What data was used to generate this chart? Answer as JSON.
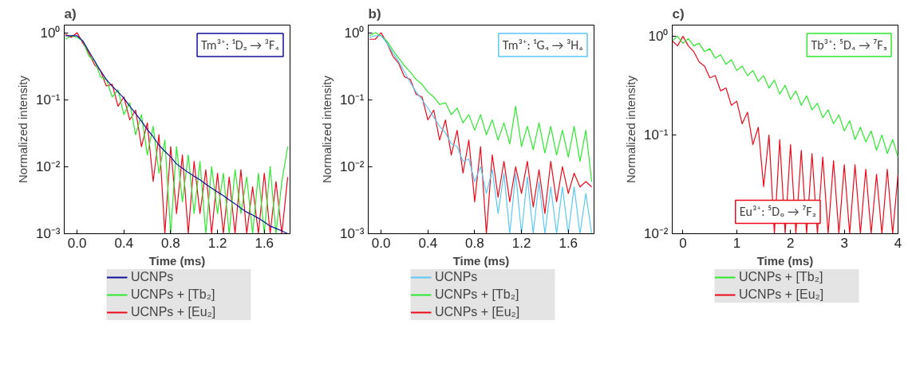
{
  "chart_data": [
    {
      "type": "line",
      "title": "a)",
      "xlabel": "Time (ms)",
      "ylabel": "Normalized intensity",
      "log": "y",
      "legend": "bottom",
      "annotations": [
        "Tm³⁺: ¹D₂ → ³F₄"
      ],
      "xlim": [
        -0.11,
        1.82
      ],
      "ylim": [
        0.001,
        1.3
      ],
      "xticks": [
        {
          "value": 0,
          "label": "0.0"
        },
        0.4,
        0.8,
        1.2,
        1.6
      ],
      "yticks": [
        {
          "value": 0.001,
          "label": "10⁻³"
        },
        {
          "value": 0.01,
          "label": "10⁻²"
        },
        {
          "value": 0.1,
          "label": "10⁻¹"
        },
        {
          "value": 1,
          "label": "10⁰"
        }
      ],
      "x": [
        -0.1,
        -0.05,
        0,
        0.05,
        0.1,
        0.15,
        0.2,
        0.25,
        0.3,
        0.35,
        0.4,
        0.45,
        0.5,
        0.55,
        0.6,
        0.65,
        0.7,
        0.75,
        0.8,
        0.85,
        0.9,
        0.95,
        1.0,
        1.05,
        1.1,
        1.15,
        1.2,
        1.25,
        1.3,
        1.35,
        1.4,
        1.45,
        1.5,
        1.55,
        1.6,
        1.65,
        1.7,
        1.75,
        1.8
      ],
      "series": [
        {
          "name": "UCNPs",
          "color": "#10109a",
          "values": [
            0.9,
            0.9,
            0.9,
            0.75,
            0.53,
            0.38,
            0.27,
            0.2,
            0.16,
            0.13,
            0.105,
            0.08,
            0.062,
            0.048,
            0.036,
            0.028,
            0.021,
            0.017,
            0.014,
            0.011,
            0.0095,
            0.0082,
            0.0072,
            0.0064,
            0.0055,
            0.0048,
            0.0042,
            0.0037,
            0.0032,
            0.0028,
            0.0024,
            0.0021,
            0.0019,
            0.0017,
            0.0015,
            0.0013,
            0.0012,
            0.0011,
            0.001
          ]
        },
        {
          "name": "UCNPs + [Tb₂]",
          "color": "#2ee82e",
          "values": [
            0.8,
            0.9,
            0.85,
            0.75,
            0.45,
            0.38,
            0.22,
            0.2,
            0.11,
            0.14,
            0.06,
            0.09,
            0.03,
            0.06,
            0.015,
            0.04,
            0.008,
            0.025,
            0.001,
            0.02,
            0.003,
            0.015,
            0.002,
            0.012,
            0.001,
            0.01,
            0.002,
            0.008,
            0.001,
            0.009,
            0.002,
            0.007,
            0.001,
            0.008,
            0.001,
            0.01,
            0.001,
            0.006,
            0.02
          ]
        },
        {
          "name": "UCNPs + [Eu₂]",
          "color": "#ec0a1a",
          "values": [
            0.95,
            0.85,
            1.0,
            0.7,
            0.5,
            0.33,
            0.27,
            0.16,
            0.17,
            0.08,
            0.11,
            0.05,
            0.07,
            0.02,
            0.045,
            0.006,
            0.03,
            0.001,
            0.02,
            0.002,
            0.015,
            0.001,
            0.012,
            0.002,
            0.009,
            0.001,
            0.008,
            0.001,
            0.007,
            0.001,
            0.009,
            0.001,
            0.005,
            0.001,
            0.008,
            0.001,
            0.006,
            0.001,
            0.007
          ]
        }
      ]
    },
    {
      "type": "line",
      "title": "b)",
      "xlabel": "Time (ms)",
      "ylabel": "Normalized intensity",
      "log": "y",
      "legend": "bottom",
      "annotations": [
        "Tm³⁺: ¹G₄ → ³H₆"
      ],
      "xlim": [
        -0.11,
        1.82
      ],
      "ylim": [
        0.001,
        1.3
      ],
      "xticks": [
        {
          "value": 0,
          "label": "0.0"
        },
        0.4,
        0.8,
        1.2,
        1.6
      ],
      "yticks": [
        {
          "value": 0.001,
          "label": "10⁻³"
        },
        {
          "value": 0.01,
          "label": "10⁻²"
        },
        {
          "value": 0.1,
          "label": "10⁻¹"
        },
        {
          "value": 1,
          "label": "10⁰"
        }
      ],
      "x": [
        -0.1,
        -0.05,
        0,
        0.05,
        0.1,
        0.15,
        0.2,
        0.25,
        0.3,
        0.35,
        0.4,
        0.45,
        0.5,
        0.55,
        0.6,
        0.65,
        0.7,
        0.75,
        0.8,
        0.85,
        0.9,
        0.95,
        1.0,
        1.05,
        1.1,
        1.15,
        1.2,
        1.25,
        1.3,
        1.35,
        1.4,
        1.45,
        1.5,
        1.55,
        1.6,
        1.65,
        1.7,
        1.75,
        1.8
      ],
      "series": [
        {
          "name": "UCNPs",
          "color": "#5bc8f5",
          "values": [
            0.85,
            0.9,
            0.9,
            0.7,
            0.5,
            0.37,
            0.26,
            0.18,
            0.13,
            0.1,
            0.075,
            0.055,
            0.04,
            0.032,
            0.022,
            0.02,
            0.012,
            0.013,
            0.006,
            0.01,
            0.004,
            0.009,
            0.002,
            0.008,
            0.001,
            0.008,
            0.001,
            0.007,
            0.001,
            0.006,
            0.001,
            0.005,
            0.001,
            0.005,
            0.001,
            0.005,
            0.001,
            0.004,
            0.001
          ]
        },
        {
          "name": "UCNPs + [Tb₂]",
          "color": "#2ee82e",
          "values": [
            0.9,
            1.0,
            0.9,
            0.75,
            0.55,
            0.42,
            0.32,
            0.26,
            0.2,
            0.17,
            0.13,
            0.11,
            0.085,
            0.09,
            0.06,
            0.075,
            0.045,
            0.06,
            0.035,
            0.06,
            0.03,
            0.05,
            0.025,
            0.045,
            0.022,
            0.08,
            0.02,
            0.04,
            0.018,
            0.045,
            0.016,
            0.04,
            0.015,
            0.035,
            0.014,
            0.04,
            0.012,
            0.035,
            0.006
          ]
        },
        {
          "name": "UCNPs + [Eu₂]",
          "color": "#ec0a1a",
          "values": [
            0.8,
            0.8,
            1.0,
            0.7,
            0.45,
            0.35,
            0.22,
            0.2,
            0.12,
            0.11,
            0.05,
            0.07,
            0.025,
            0.05,
            0.015,
            0.035,
            0.008,
            0.025,
            0.003,
            0.02,
            0.001,
            0.015,
            0.0035,
            0.012,
            0.003,
            0.01,
            0.004,
            0.012,
            0.0025,
            0.009,
            0.002,
            0.012,
            0.003,
            0.01,
            0.004,
            0.008,
            0.005,
            0.006,
            0.005
          ]
        }
      ]
    },
    {
      "type": "line",
      "title": "c)",
      "xlabel": "Time (ms)",
      "ylabel": "Normalized intensity",
      "log": "y",
      "legend": "bottom",
      "annotations": [
        "Tb³⁺: ⁵D₄ → ⁷F₅",
        "Eu³⁺: ⁵D₀ → ⁷F₂"
      ],
      "xlim": [
        -0.2,
        4
      ],
      "ylim": [
        0.01,
        1.3
      ],
      "xticks": [
        0,
        1,
        2,
        3,
        4
      ],
      "yticks": [
        {
          "value": 0.01,
          "label": "10⁻²"
        },
        {
          "value": 0.1,
          "label": "10⁻¹"
        },
        {
          "value": 1,
          "label": "10⁰"
        }
      ],
      "x": [
        -0.2,
        -0.1,
        0,
        0.1,
        0.2,
        0.3,
        0.4,
        0.5,
        0.6,
        0.7,
        0.8,
        0.9,
        1.0,
        1.1,
        1.2,
        1.3,
        1.4,
        1.5,
        1.6,
        1.7,
        1.8,
        1.9,
        2.0,
        2.1,
        2.2,
        2.3,
        2.4,
        2.5,
        2.6,
        2.7,
        2.8,
        2.9,
        3.0,
        3.1,
        3.2,
        3.3,
        3.4,
        3.5,
        3.6,
        3.7,
        3.8,
        3.9,
        4.0
      ],
      "series": [
        {
          "name": "UCNPs + [Tb₂]",
          "color": "#2ee82e",
          "values": [
            0.9,
            1.0,
            0.85,
            0.95,
            0.8,
            0.85,
            0.7,
            0.75,
            0.6,
            0.65,
            0.52,
            0.58,
            0.45,
            0.5,
            0.4,
            0.45,
            0.35,
            0.4,
            0.3,
            0.36,
            0.26,
            0.32,
            0.23,
            0.28,
            0.2,
            0.25,
            0.18,
            0.21,
            0.15,
            0.18,
            0.13,
            0.16,
            0.11,
            0.14,
            0.09,
            0.12,
            0.085,
            0.11,
            0.07,
            0.1,
            0.065,
            0.09,
            0.06
          ]
        },
        {
          "name": "UCNPs + [Eu₂]",
          "color": "#ec0a1a",
          "values": [
            0.9,
            0.8,
            1.0,
            0.8,
            0.7,
            0.55,
            0.5,
            0.38,
            0.4,
            0.28,
            0.3,
            0.2,
            0.22,
            0.13,
            0.17,
            0.08,
            0.12,
            0.03,
            0.1,
            0.01,
            0.09,
            0.01,
            0.08,
            0.01,
            0.07,
            0.01,
            0.065,
            0.01,
            0.06,
            0.01,
            0.055,
            0.01,
            0.05,
            0.01,
            0.05,
            0.01,
            0.045,
            0.01,
            0.04,
            0.01,
            0.045,
            0.01,
            0.04
          ]
        }
      ]
    }
  ]
}
